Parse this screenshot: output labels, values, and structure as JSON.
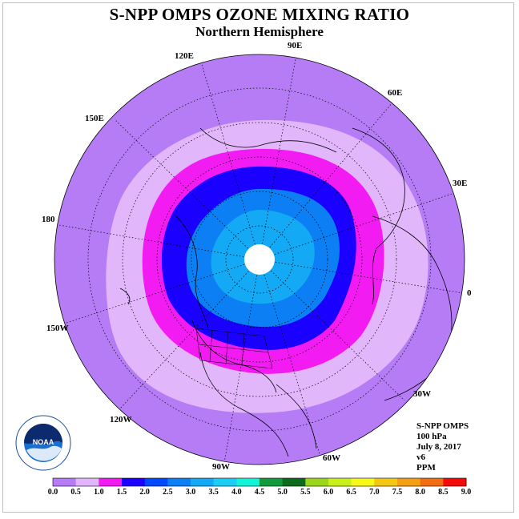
{
  "title": "S-NPP OMPS OZONE MIXING RATIO",
  "subtitle": "Northern Hemisphere",
  "longitude_labels": {
    "l120e": "120E",
    "l90e": "90E",
    "l60e": "60E",
    "l150e": "150E",
    "l30e": "30E",
    "l180": "180",
    "l0": "0",
    "l150w": "150W",
    "l30w": "30W",
    "l120w": "120W",
    "l60w": "60W",
    "l90w": "90W"
  },
  "info": {
    "line1": "S-NPP OMPS",
    "line2": "100 hPa",
    "line3": "July 8, 2017",
    "line4": "v6",
    "line5": "PPM"
  },
  "logo": {
    "text": "NOAA",
    "ring_text": "NATIONAL OCEANIC AND ATMOSPHERIC ADMINISTRATION · U.S. DEPARTMENT OF COMMERCE"
  },
  "colorbar": {
    "ticks": [
      "0.0",
      "0.5",
      "1.0",
      "1.5",
      "2.0",
      "2.5",
      "3.0",
      "3.5",
      "4.0",
      "4.5",
      "5.0",
      "5.5",
      "6.0",
      "6.5",
      "7.0",
      "7.5",
      "8.0",
      "8.5",
      "9.0"
    ],
    "colors": [
      "#b57cf5",
      "#e2b6fb",
      "#f21cf2",
      "#1a00ff",
      "#0049ff",
      "#0c7ff4",
      "#14a9f4",
      "#1ccdf4",
      "#14f2d8",
      "#129a3c",
      "#0e6b1c",
      "#9bd61d",
      "#c8f01a",
      "#f8f81a",
      "#f4c812",
      "#f4a012",
      "#f46c12",
      "#f40c0c",
      "#7c4a2a"
    ]
  }
}
